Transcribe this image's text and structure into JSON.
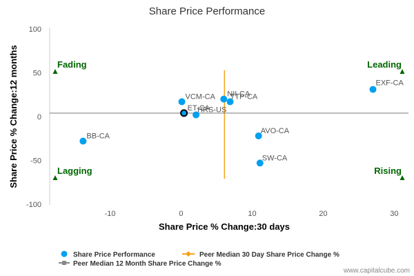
{
  "chart_data": {
    "type": "scatter",
    "title": "Share Price Performance",
    "xlabel": "Share Price % Change:30 days",
    "ylabel": "Share Price % Change:12 months",
    "xlim": [
      -18.5,
      32
    ],
    "ylim": [
      -100,
      100
    ],
    "x_ticks": [
      -10,
      0,
      10,
      20,
      30
    ],
    "y_ticks": [
      -100,
      -50,
      0,
      50,
      100
    ],
    "grid": false,
    "legend_position": "bottom-left",
    "series": [
      {
        "name": "Share Price Performance",
        "color": "#00a0f0",
        "points": [
          {
            "label": "EXF-CA",
            "x": 27.0,
            "y": 31
          },
          {
            "label": "NII-CA",
            "x": 6.0,
            "y": 20
          },
          {
            "label": "TTP-CA",
            "x": 6.9,
            "y": 17
          },
          {
            "label": "VCM-CA",
            "x": 0.1,
            "y": 17
          },
          {
            "label": "ET-CA",
            "x": 0.4,
            "y": 4
          },
          {
            "label": "HRS-US",
            "x": 2.1,
            "y": 2
          },
          {
            "label": "AVO-CA",
            "x": 10.9,
            "y": -22
          },
          {
            "label": "SW-CA",
            "x": 11.1,
            "y": -53
          },
          {
            "label": "BB-CA",
            "x": -13.8,
            "y": -28
          }
        ]
      }
    ],
    "subject": {
      "label": "ET-CA",
      "x": 0.4,
      "y": 4
    },
    "reference_lines": [
      {
        "name": "Peer Median 30 Day Share Price Change %",
        "orientation": "vertical",
        "value": 6.1,
        "range": [
          -71,
          53
        ],
        "color": "#f5a31a"
      },
      {
        "name": "Peer Median 12 Month Share Price Change %",
        "orientation": "horizontal",
        "value": 4,
        "range": [
          -18.5,
          32
        ],
        "color": "#888888"
      }
    ],
    "quadrants": [
      {
        "label": "Fading",
        "corner": "top-left"
      },
      {
        "label": "Leading",
        "corner": "top-right"
      },
      {
        "label": "Lagging",
        "corner": "bottom-left"
      },
      {
        "label": "Rising",
        "corner": "bottom-right"
      }
    ],
    "quadrant_color": "#006600"
  },
  "legend": {
    "items": [
      {
        "label": "Share Price Performance",
        "kind": "dot",
        "color": "#00a0f0"
      },
      {
        "label": "Peer Median 30 Day Share Price Change %",
        "kind": "line-diamond",
        "color": "#f5a31a"
      },
      {
        "label": "Peer Median 12 Month Share Price Change %",
        "kind": "line-square",
        "color": "#888888"
      }
    ]
  },
  "credit": "www.capitalcube.com"
}
